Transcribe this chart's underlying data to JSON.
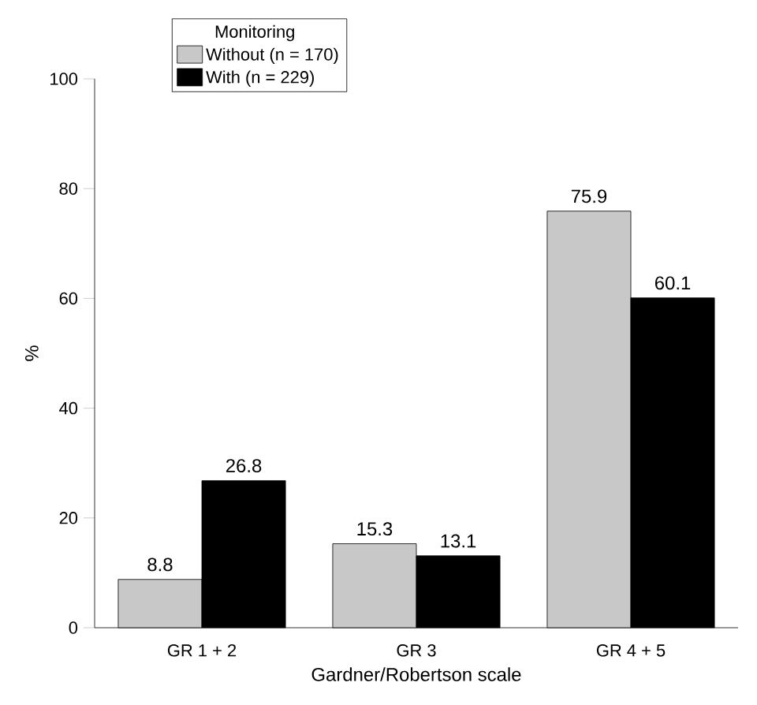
{
  "chart_data": {
    "type": "bar",
    "xlabel": "Gardner/Robertson scale",
    "ylabel": "%",
    "legend_title": "Monitoring",
    "categories": [
      "GR 1 + 2",
      "GR 3",
      "GR 4 + 5"
    ],
    "series": [
      {
        "name": "Without (n = 170)",
        "color": "#c8c8c8",
        "values": [
          8.8,
          15.3,
          75.9
        ]
      },
      {
        "name": "With (n = 229)",
        "color": "#000000",
        "values": [
          26.8,
          13.1,
          60.1
        ]
      }
    ],
    "ylim": [
      0,
      100
    ],
    "yticks": [
      0,
      20,
      40,
      60,
      80,
      100
    ],
    "data_labels": true,
    "grid": false,
    "legend": "top left"
  }
}
